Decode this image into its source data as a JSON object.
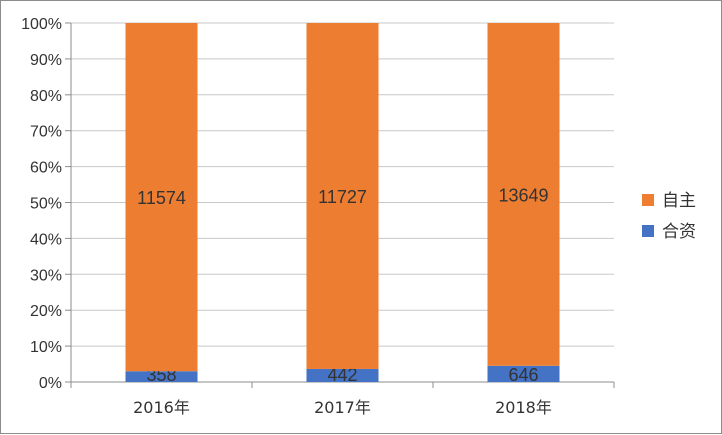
{
  "chart_data": {
    "type": "bar",
    "stacked": "percent",
    "categories": [
      "2016年",
      "2017年",
      "2018年"
    ],
    "series": [
      {
        "name": "合资",
        "values": [
          358,
          442,
          646
        ],
        "color": "#4472C4"
      },
      {
        "name": "自主",
        "values": [
          11574,
          11727,
          13649
        ],
        "color": "#ED7D31"
      }
    ],
    "y_ticks": [
      "0%",
      "10%",
      "20%",
      "30%",
      "40%",
      "50%",
      "60%",
      "70%",
      "80%",
      "90%",
      "100%"
    ],
    "ylim": [
      0,
      100
    ],
    "grid": true,
    "legend": {
      "placement": "right",
      "order": [
        "自主",
        "合资"
      ]
    },
    "data_labels": true
  }
}
